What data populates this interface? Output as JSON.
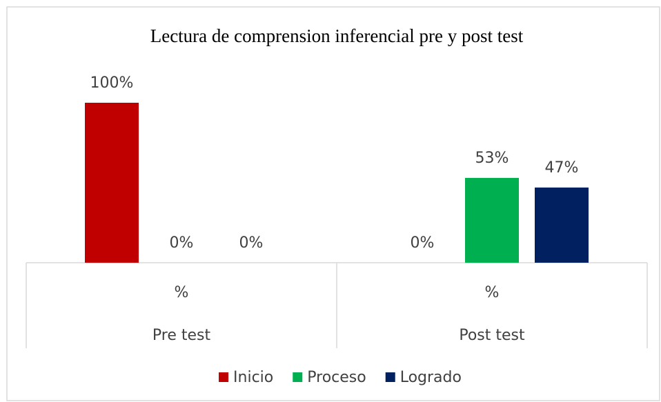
{
  "chart_data": {
    "type": "bar",
    "title": "Lectura de comprension inferencial pre y post test",
    "categories": [
      "%",
      "%"
    ],
    "groups": [
      "Pre test",
      "Post test"
    ],
    "series": [
      {
        "name": "Inicio",
        "color": "#c00000",
        "values": [
          100,
          0
        ],
        "value_labels": [
          "100%",
          "0%"
        ]
      },
      {
        "name": "Proceso",
        "color": "#00b050",
        "values": [
          0,
          53
        ],
        "value_labels": [
          "0%",
          "53%"
        ]
      },
      {
        "name": "Logrado",
        "color": "#002060",
        "values": [
          0,
          47
        ],
        "value_labels": [
          "0%",
          "47%"
        ]
      }
    ]
  }
}
